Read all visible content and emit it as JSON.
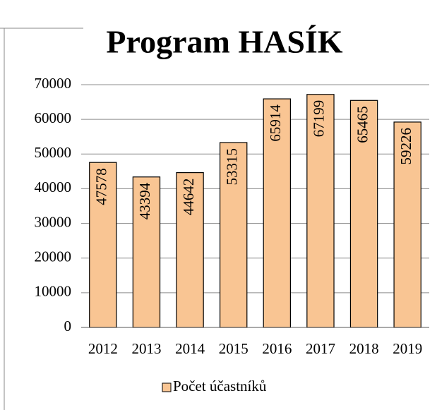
{
  "chart_data": {
    "type": "bar",
    "title": "Program HASÍK",
    "categories": [
      "2012",
      "2013",
      "2014",
      "2015",
      "2016",
      "2017",
      "2018",
      "2019"
    ],
    "series": [
      {
        "name": "Počet účastníků",
        "color": "#f9c593",
        "values": [
          47578,
          43394,
          44642,
          53315,
          65914,
          67199,
          65465,
          59226
        ]
      }
    ],
    "ylim": [
      0,
      70000
    ],
    "yticks": [
      0,
      10000,
      20000,
      30000,
      40000,
      50000,
      60000,
      70000
    ],
    "grid": true,
    "legend": "bottom",
    "data_labels": true
  }
}
